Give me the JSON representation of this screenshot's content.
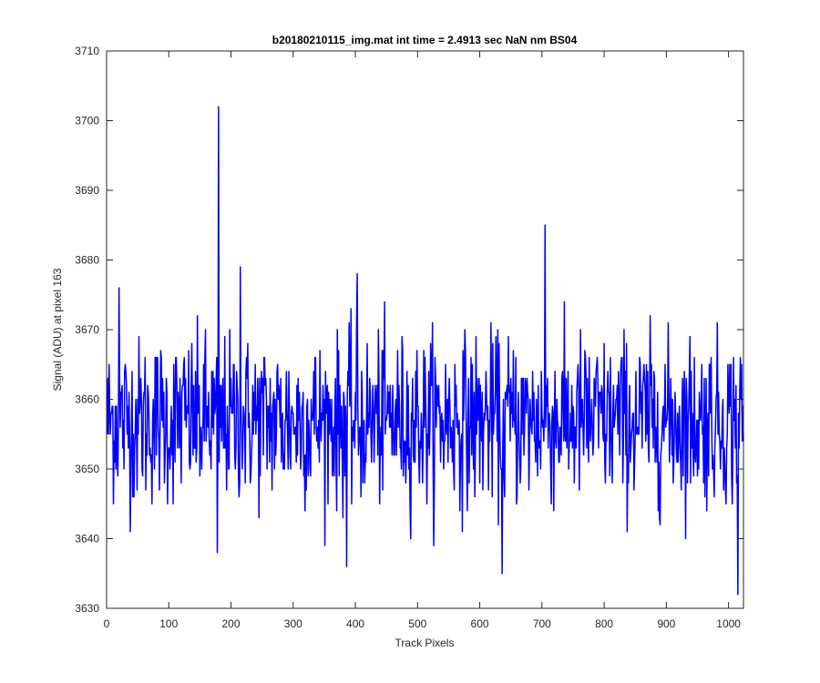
{
  "chart_data": {
    "type": "line",
    "title": "b20180210115_img.mat int time = 2.4913 sec  NaN nm BS04",
    "xlabel": "Track Pixels",
    "ylabel": "Signal (ADU) at pixel 163",
    "xlim": [
      0,
      1024
    ],
    "ylim": [
      3630,
      3710
    ],
    "xticks": [
      "0",
      "100",
      "200",
      "300",
      "400",
      "500",
      "600",
      "700",
      "800",
      "900",
      "1000"
    ],
    "yticks": [
      "3630",
      "3640",
      "3650",
      "3660",
      "3670",
      "3680",
      "3690",
      "3700",
      "3710"
    ],
    "grid": false,
    "series": [
      {
        "color": "#0000ff",
        "x_start": 1,
        "x_step": 1,
        "noise_mean": 3657,
        "noise_std": 6,
        "spikes": [
          {
            "x": 180,
            "y": 3702
          },
          {
            "x": 705,
            "y": 3685
          },
          {
            "x": 215,
            "y": 3679
          },
          {
            "x": 403,
            "y": 3678
          },
          {
            "x": 20,
            "y": 3676
          },
          {
            "x": 178,
            "y": 3638
          },
          {
            "x": 386,
            "y": 3636
          },
          {
            "x": 636,
            "y": 3635
          },
          {
            "x": 1015,
            "y": 3632
          }
        ],
        "values": []
      }
    ]
  },
  "colors": {
    "line": "#0000ff",
    "axis": "#262626"
  }
}
